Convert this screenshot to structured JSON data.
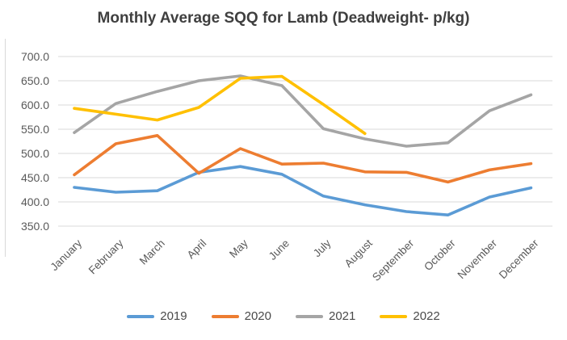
{
  "chart_data": {
    "type": "line",
    "title": "Monthly Average SQQ for Lamb (Deadweight- p/kg)",
    "categories": [
      "January",
      "February",
      "March",
      "April",
      "May",
      "June",
      "July",
      "August",
      "September",
      "October",
      "November",
      "December"
    ],
    "series": [
      {
        "name": "2019",
        "color": "#5B9BD5",
        "values": [
          430,
          420,
          423,
          461,
          473,
          457,
          412,
          394,
          380,
          373,
          410,
          429
        ]
      },
      {
        "name": "2020",
        "color": "#ED7D31",
        "values": [
          456,
          520,
          537,
          459,
          510,
          478,
          480,
          462,
          461,
          441,
          466,
          479
        ]
      },
      {
        "name": "2021",
        "color": "#A5A5A5",
        "values": [
          543,
          603,
          628,
          650,
          660,
          640,
          551,
          530,
          515,
          522,
          588,
          621
        ]
      },
      {
        "name": "2022",
        "color": "#FFC000",
        "values": [
          593,
          581,
          569,
          595,
          655,
          659,
          601,
          541,
          null,
          null,
          null,
          null
        ]
      }
    ],
    "ylim": [
      350,
      700
    ],
    "y_tick_step": 50,
    "y_tick_labels": [
      "700.0",
      "650.0",
      "600.0",
      "550.0",
      "500.0",
      "450.0",
      "400.0",
      "350.0"
    ],
    "grid": true,
    "legend_position": "bottom",
    "legend_entries": [
      "2019",
      "2020",
      "2021",
      "2022"
    ],
    "xlabel": "",
    "ylabel": ""
  },
  "colors": {
    "background": "#FFFFFF",
    "gridline": "#D9D9D9",
    "axis_text": "#595959",
    "title_text": "#3F3F3F"
  }
}
